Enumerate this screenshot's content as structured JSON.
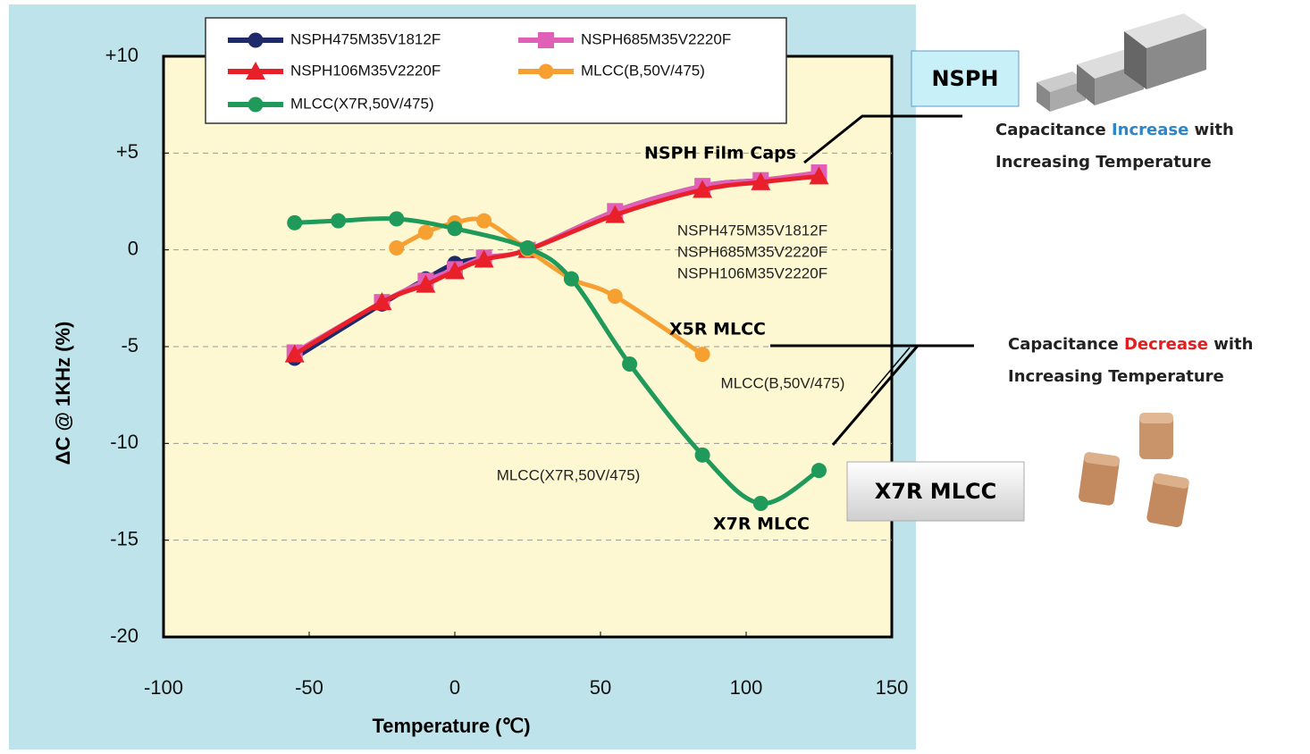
{
  "chart_data": {
    "type": "line",
    "x_label": "Temperature (℃)",
    "y_label": "ΔC @ 1KHz (%)",
    "xlim": [
      -100,
      150
    ],
    "xticks": [
      -100,
      -50,
      0,
      50,
      100,
      150
    ],
    "ylim": [
      -20,
      10
    ],
    "yticks": [
      {
        "value": 10,
        "label": "+10"
      },
      {
        "value": 5,
        "label": "+5"
      },
      0,
      -5,
      -10,
      -15,
      -20
    ],
    "grid": true,
    "legend": "top",
    "series": [
      {
        "name": "NSPH475M35V1812F",
        "color": "#1f2a6b",
        "marker": "circle",
        "x": [
          -55,
          -25,
          -10,
          0,
          10,
          25,
          55,
          85,
          105,
          125
        ],
        "values": [
          -5.6,
          -2.8,
          -1.5,
          -0.7,
          -0.4,
          0,
          2.0,
          3.3,
          3.6,
          3.9
        ]
      },
      {
        "name": "NSPH685M35V2220F",
        "color": "#e060b8",
        "marker": "square",
        "x": [
          -55,
          -25,
          -10,
          0,
          10,
          25,
          55,
          85,
          105,
          125
        ],
        "values": [
          -5.3,
          -2.7,
          -1.6,
          -1.0,
          -0.4,
          0,
          2.0,
          3.3,
          3.6,
          4.0
        ]
      },
      {
        "name": "NSPH106M35V2220F",
        "color": "#e8202a",
        "marker": "triangle",
        "x": [
          -55,
          -25,
          -10,
          0,
          10,
          25,
          55,
          85,
          105,
          125
        ],
        "values": [
          -5.4,
          -2.7,
          -1.8,
          -1.1,
          -0.5,
          0,
          1.8,
          3.1,
          3.5,
          3.8
        ]
      },
      {
        "name": "MLCC(B,50V/475)",
        "color": "#f5a030",
        "marker": "circle",
        "x": [
          -20,
          -10,
          0,
          10,
          25,
          40,
          55,
          85
        ],
        "values": [
          0.1,
          0.9,
          1.4,
          1.5,
          0,
          -1.5,
          -2.4,
          -5.4
        ]
      },
      {
        "name": "MLCC(X7R,50V/475)",
        "color": "#1f9a5a",
        "marker": "circle",
        "x": [
          -55,
          -40,
          -20,
          0,
          25,
          40,
          60,
          85,
          105,
          125
        ],
        "values": [
          1.4,
          1.5,
          1.6,
          1.1,
          0.1,
          -1.5,
          -5.9,
          -10.6,
          -13.1,
          -11.4
        ]
      }
    ],
    "annotations": [
      "NSPH Film Caps",
      "NSPH475M35V1812F",
      "NSPH685M35V2220F",
      "NSPH106M35V2220F",
      "X5R MLCC",
      "MLCC(B,50V/475)",
      "MLCC(X7R,50V/475)",
      "X7R MLCC"
    ],
    "callouts": {
      "nsph_box": "NSPH",
      "x7r_box": "X7R MLCC",
      "increase": [
        "Capacitance ",
        "Increase",
        " with",
        "Increasing Temperature"
      ],
      "decrease": [
        "Capacitance ",
        "Decrease",
        " with",
        "Increasing Temperature"
      ]
    }
  }
}
